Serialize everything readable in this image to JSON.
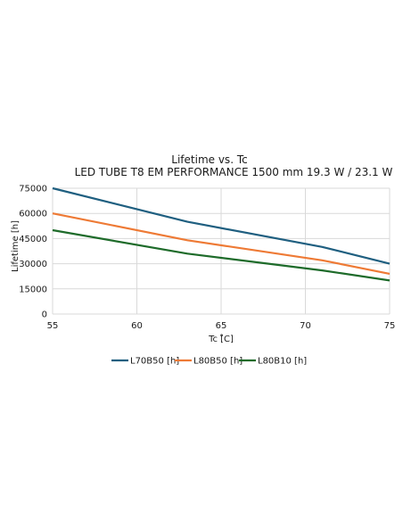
{
  "chart_data": {
    "type": "line",
    "title": "Lifetime vs. Tc",
    "subtitle": "LED TUBE T8 EM PERFORMANCE 1500 mm 19.3 W / 23.1 W",
    "xlabel": "Tc [̊C]",
    "ylabel": "Lifetime [h]",
    "xlim": [
      55,
      75
    ],
    "ylim": [
      0,
      75000
    ],
    "xticks": [
      "55",
      "60",
      "65",
      "70",
      "75"
    ],
    "yticks": [
      "0",
      "15000",
      "30000",
      "45000",
      "60000",
      "75000"
    ],
    "grid": true,
    "legend_position": "bottom",
    "series": [
      {
        "name": "L70B50 [h]",
        "color": "#1f5f80",
        "x": [
          55,
          63,
          71,
          75
        ],
        "y": [
          75000,
          55000,
          40000,
          30000
        ]
      },
      {
        "name": "L80B50 [h]",
        "color": "#ee7a35",
        "x": [
          55,
          63,
          71,
          75
        ],
        "y": [
          60000,
          44000,
          32000,
          24000
        ]
      },
      {
        "name": "L80B10 [h]",
        "color": "#1e6b2a",
        "x": [
          55,
          63,
          71,
          75
        ],
        "y": [
          50000,
          36000,
          26000,
          20000
        ]
      }
    ]
  }
}
